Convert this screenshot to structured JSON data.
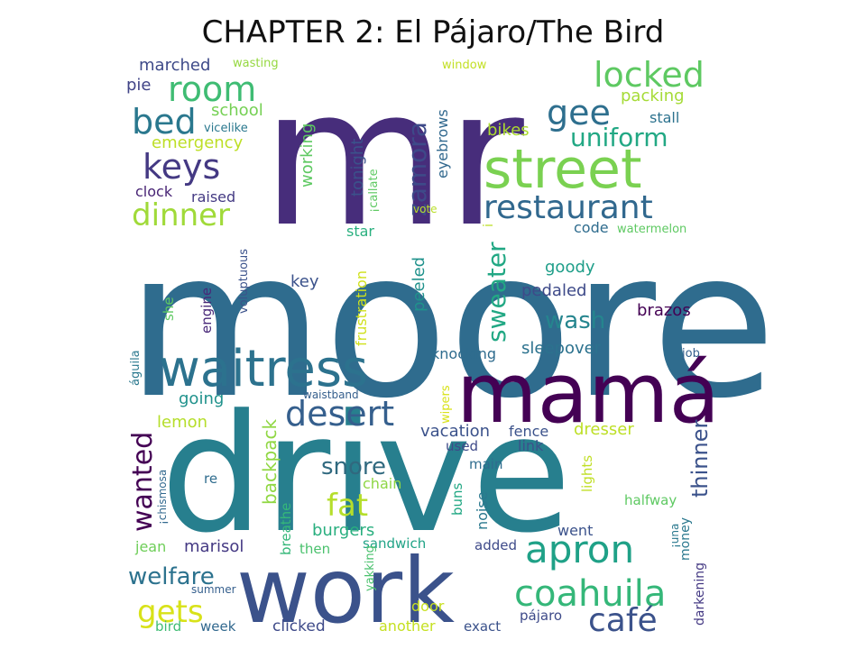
{
  "figure": {
    "title": "CHAPTER 2: El Pájaro/The Bird"
  },
  "words": [
    {
      "text": "mr",
      "color": "#472d7b"
    },
    {
      "text": "moore",
      "color": "#2f6c8e"
    },
    {
      "text": "drive",
      "color": "#277f8e"
    },
    {
      "text": "work",
      "color": "#3b528b"
    },
    {
      "text": "mamá",
      "color": "#440154"
    },
    {
      "text": "waitress",
      "color": "#2c728e"
    },
    {
      "text": "street",
      "color": "#7ad151"
    },
    {
      "text": "restaurant",
      "color": "#31688e"
    },
    {
      "text": "apron",
      "color": "#1fa187"
    },
    {
      "text": "coahuila",
      "color": "#35b779"
    },
    {
      "text": "locked",
      "color": "#5ec962"
    },
    {
      "text": "room",
      "color": "#3fbc73"
    },
    {
      "text": "bed",
      "color": "#2a788e"
    },
    {
      "text": "keys",
      "color": "#443983"
    },
    {
      "text": "dinner",
      "color": "#a0da39"
    },
    {
      "text": "desert",
      "color": "#355f8d"
    },
    {
      "text": "gee",
      "color": "#2e6f8e"
    },
    {
      "text": "uniform",
      "color": "#22a884"
    },
    {
      "text": "zamora",
      "color": "#3e4a89"
    },
    {
      "text": "wanted",
      "color": "#440154"
    },
    {
      "text": "fat",
      "color": "#b5de2b"
    },
    {
      "text": "gets",
      "color": "#d8e219"
    },
    {
      "text": "café",
      "color": "#3b528b"
    },
    {
      "text": "welfare",
      "color": "#2c728e"
    },
    {
      "text": "snore",
      "color": "#30697f"
    },
    {
      "text": "sweater",
      "color": "#22a884"
    },
    {
      "text": "wash",
      "color": "#25858e"
    },
    {
      "text": "thinner",
      "color": "#3b528b"
    },
    {
      "text": "backpack",
      "color": "#90d743"
    },
    {
      "text": "marched",
      "color": "#3e4a89"
    },
    {
      "text": "pie",
      "color": "#414487"
    },
    {
      "text": "school",
      "color": "#75d054"
    },
    {
      "text": "vicelike",
      "color": "#2a788e"
    },
    {
      "text": "emergency",
      "color": "#bddf26"
    },
    {
      "text": "clock",
      "color": "#482475"
    },
    {
      "text": "raised",
      "color": "#443a83"
    },
    {
      "text": "working",
      "color": "#5ec962"
    },
    {
      "text": "tonight",
      "color": "#3b528b"
    },
    {
      "text": "eyebrows",
      "color": "#31688e"
    },
    {
      "text": "wasting",
      "color": "#95d840"
    },
    {
      "text": "window",
      "color": "#c2df23"
    },
    {
      "text": "packing",
      "color": "#a5db36"
    },
    {
      "text": "stall",
      "color": "#2c728e"
    },
    {
      "text": "bikes",
      "color": "#addc30"
    },
    {
      "text": "¡callate",
      "color": "#5ec962"
    },
    {
      "text": "vote",
      "color": "#b8de29"
    },
    {
      "text": "star",
      "color": "#2ab07f"
    },
    {
      "text": "code",
      "color": "#2f6c8e"
    },
    {
      "text": "watermelon",
      "color": "#5ec962"
    },
    {
      "text": "key",
      "color": "#3b528b"
    },
    {
      "text": "frustration",
      "color": "#d0e11c"
    },
    {
      "text": "peeled",
      "color": "#20928c"
    },
    {
      "text": "goody",
      "color": "#1f9e89"
    },
    {
      "text": "pedaled",
      "color": "#3e4a89"
    },
    {
      "text": "brazos",
      "color": "#440154"
    },
    {
      "text": "voluptuous",
      "color": "#3b528b"
    },
    {
      "text": "engine",
      "color": "#482878"
    },
    {
      "text": "she",
      "color": "#5ec962"
    },
    {
      "text": "knocking",
      "color": "#2f6c8e"
    },
    {
      "text": "sleepover",
      "color": "#2c728e"
    },
    {
      "text": "job",
      "color": "#355f8d"
    },
    {
      "text": "águila",
      "color": "#2a788e"
    },
    {
      "text": "going",
      "color": "#20928c"
    },
    {
      "text": "waistband",
      "color": "#355f8d"
    },
    {
      "text": "wipers",
      "color": "#d8e219"
    },
    {
      "text": "lemon",
      "color": "#b5de2b"
    },
    {
      "text": "vacation",
      "color": "#3b528b"
    },
    {
      "text": "fence",
      "color": "#3b528b"
    },
    {
      "text": "dresser",
      "color": "#bddf26"
    },
    {
      "text": "used",
      "color": "#3e4a89"
    },
    {
      "text": "link",
      "color": "#3b528b"
    },
    {
      "text": "¡chismosa",
      "color": "#31688e"
    },
    {
      "text": "re",
      "color": "#2f6c8e"
    },
    {
      "text": "main",
      "color": "#2f6c8e"
    },
    {
      "text": "lights",
      "color": "#c0df25"
    },
    {
      "text": "chain",
      "color": "#8ed645"
    },
    {
      "text": "breathe",
      "color": "#35b779"
    },
    {
      "text": "buns",
      "color": "#22a884"
    },
    {
      "text": "noise",
      "color": "#2a788e"
    },
    {
      "text": "halfway",
      "color": "#5ec962"
    },
    {
      "text": "burgers",
      "color": "#29af7f"
    },
    {
      "text": "went",
      "color": "#3b528b"
    },
    {
      "text": "money",
      "color": "#2a788e"
    },
    {
      "text": "jean",
      "color": "#6ece58"
    },
    {
      "text": "marisol",
      "color": "#443983"
    },
    {
      "text": "then",
      "color": "#4ac16d"
    },
    {
      "text": "sandwich",
      "color": "#20a386"
    },
    {
      "text": "added",
      "color": "#3e4a89"
    },
    {
      "text": "¡una",
      "color": "#2a788e"
    },
    {
      "text": "summer",
      "color": "#355f8d"
    },
    {
      "text": "yakking",
      "color": "#4ac16d"
    },
    {
      "text": "darkening",
      "color": "#443983"
    },
    {
      "text": "door",
      "color": "#c8e020"
    },
    {
      "text": "pájaro",
      "color": "#3e4a89"
    },
    {
      "text": "bird",
      "color": "#3fbc73"
    },
    {
      "text": "week",
      "color": "#31688e"
    },
    {
      "text": "clicked",
      "color": "#3e4a89"
    },
    {
      "text": "another",
      "color": "#c5e021"
    },
    {
      "text": "exact",
      "color": "#3b528b"
    },
    {
      "text": "i",
      "color": "#bddf26"
    }
  ]
}
